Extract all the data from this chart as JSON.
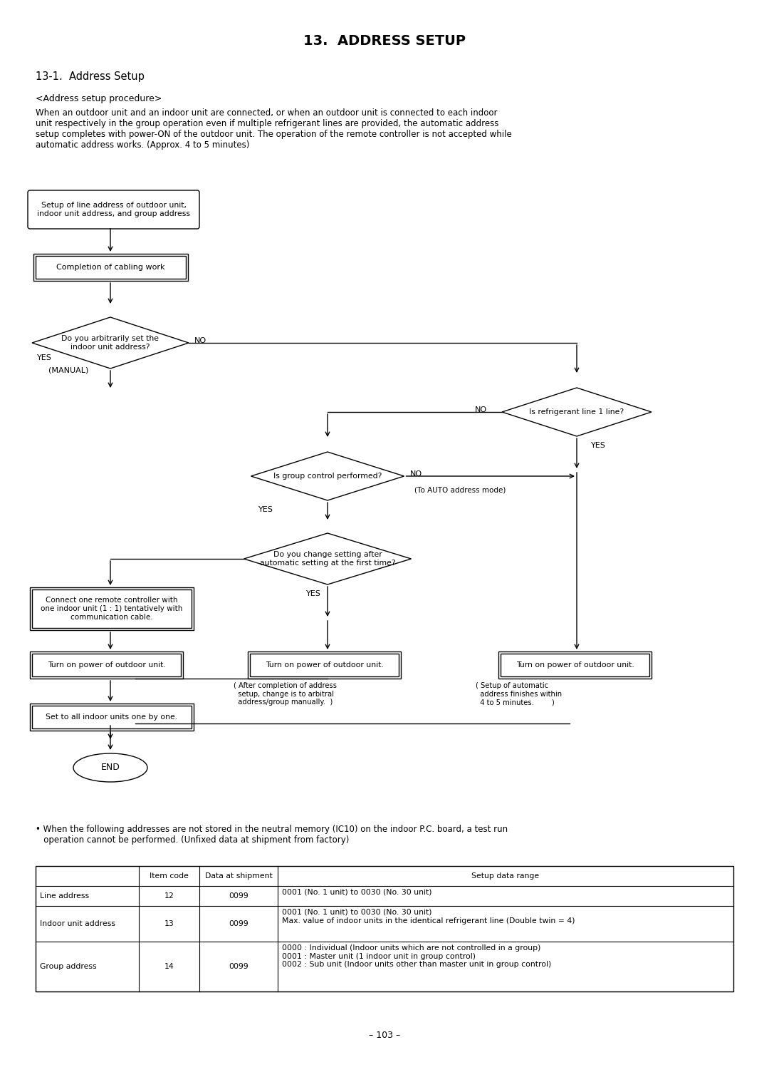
{
  "title": "13.  ADDRESS SETUP",
  "subtitle": "13-1.  Address Setup",
  "procedure_label": "<Address setup procedure>",
  "paragraph": "When an outdoor unit and an indoor unit are connected, or when an outdoor unit is connected to each indoor\nunit respectively in the group operation even if multiple refrigerant lines are provided, the automatic address\nsetup completes with power-ON of the outdoor unit. The operation of the remote controller is not accepted while\nautomatic address works. (Approx. 4 to 5 minutes)",
  "bullet_text": "• When the following addresses are not stored in the neutral memory (IC10) on the indoor P.C. board, a test run\n   operation cannot be performed. (Unfixed data at shipment from factory)",
  "table_headers": [
    "",
    "Item code",
    "Data at shipment",
    "Setup data range"
  ],
  "table_rows": [
    [
      "Line address",
      "12",
      "0099",
      "0001 (No. 1 unit) to 0030 (No. 30 unit)"
    ],
    [
      "Indoor unit address",
      "13",
      "0099",
      "0001 (No. 1 unit) to 0030 (No. 30 unit)\nMax. value of indoor units in the identical refrigerant line (Double twin = 4)"
    ],
    [
      "Group address",
      "14",
      "0099",
      "0000 : Individual (Indoor units which are not controlled in a group)\n0001 : Master unit (1 indoor unit in group control)\n0002 : Sub unit (Indoor units other than master unit in group control)"
    ]
  ],
  "page_number": "– 103 –",
  "bg_color": "#ffffff",
  "text_color": "#000000"
}
